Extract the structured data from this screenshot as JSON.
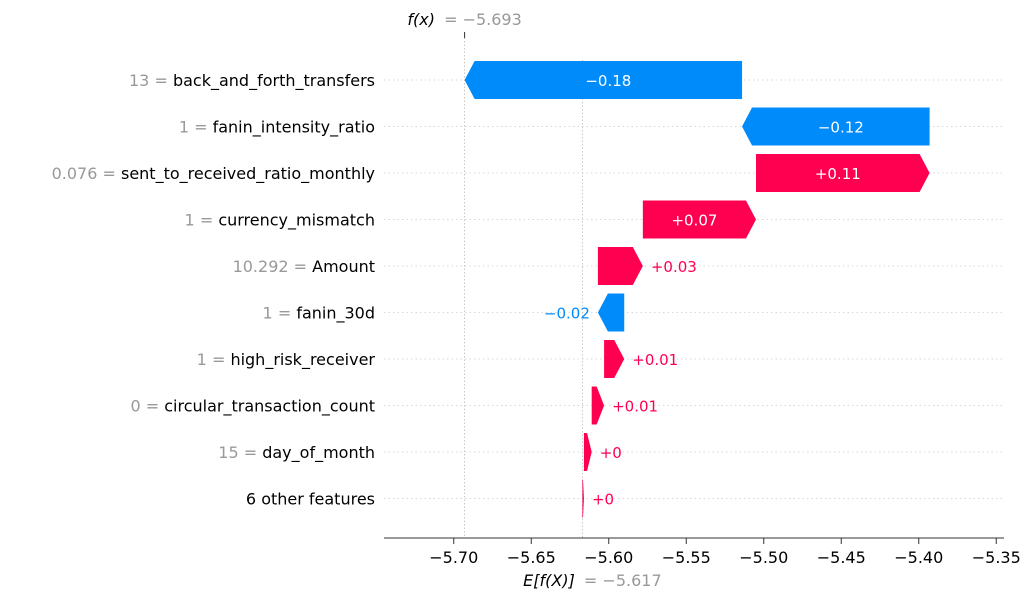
{
  "chart_data": {
    "type": "waterfall",
    "fx_label": "f(x)",
    "fx_value_text": "= −5.693",
    "fx_value": -5.693,
    "ex_label": "E[f(X)]",
    "ex_value_text": "= −5.617",
    "ex_value": -5.617,
    "xlim": [
      -5.745,
      -5.345
    ],
    "xticks": [
      -5.7,
      -5.65,
      -5.6,
      -5.55,
      -5.5,
      -5.45,
      -5.4,
      -5.35
    ],
    "xtick_labels": [
      "−5.70",
      "−5.65",
      "−5.60",
      "−5.55",
      "−5.50",
      "−5.45",
      "−5.40",
      "−5.35"
    ],
    "colors": {
      "positive": "#ff0051",
      "negative": "#008bfb",
      "muted": "#999999"
    },
    "rows": [
      {
        "value_text": "13 =",
        "feature": "back_and_forth_transfers",
        "start": -5.514,
        "end": -5.693,
        "label": "−0.18"
      },
      {
        "value_text": "1 =",
        "feature": "fanin_intensity_ratio",
        "start": -5.393,
        "end": -5.514,
        "label": "−0.12"
      },
      {
        "value_text": "0.076 =",
        "feature": "sent_to_received_ratio_monthly",
        "start": -5.505,
        "end": -5.393,
        "label": "+0.11"
      },
      {
        "value_text": "1 =",
        "feature": "currency_mismatch",
        "start": -5.578,
        "end": -5.505,
        "label": "+0.07"
      },
      {
        "value_text": "10.292 =",
        "feature": "Amount",
        "start": -5.607,
        "end": -5.578,
        "label": "+0.03"
      },
      {
        "value_text": "1 =",
        "feature": "fanin_30d",
        "start": -5.59,
        "end": -5.607,
        "label": "−0.02"
      },
      {
        "value_text": "1 =",
        "feature": "high_risk_receiver",
        "start": -5.603,
        "end": -5.59,
        "label": "+0.01"
      },
      {
        "value_text": "0 =",
        "feature": "circular_transaction_count",
        "start": -5.611,
        "end": -5.603,
        "label": "+0.01"
      },
      {
        "value_text": "15 =",
        "feature": "day_of_month",
        "start": -5.616,
        "end": -5.611,
        "label": "+0"
      },
      {
        "value_text": "",
        "feature": "6 other features",
        "start": -5.617,
        "end": -5.616,
        "label": "+0"
      }
    ]
  }
}
